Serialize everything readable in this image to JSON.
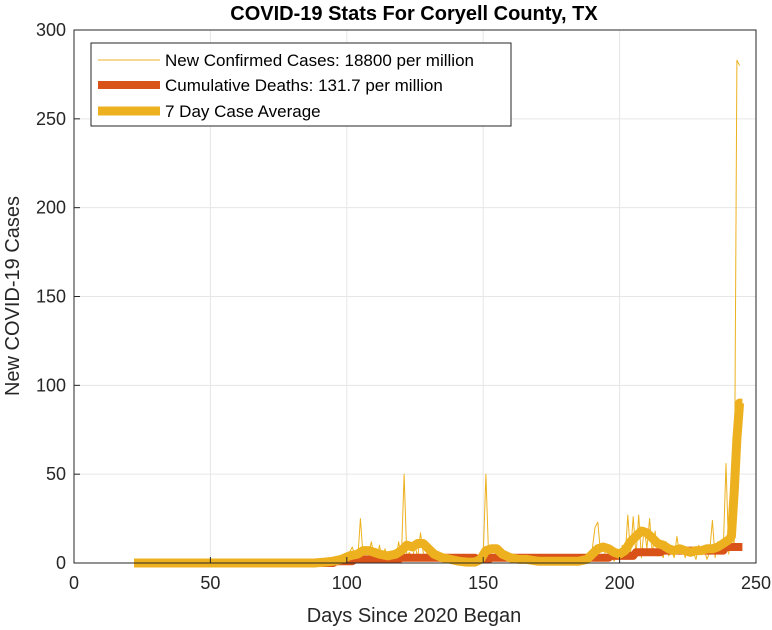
{
  "chart_data": {
    "type": "line",
    "title": "COVID-19 Stats For Coryell County, TX",
    "xlabel": "Days Since 2020 Began",
    "ylabel": "New COVID-19 Cases",
    "xlim": [
      0,
      250
    ],
    "ylim": [
      0,
      300
    ],
    "xticks": [
      0,
      50,
      100,
      150,
      200,
      250
    ],
    "yticks": [
      0,
      50,
      100,
      150,
      200,
      250,
      300
    ],
    "grid": true,
    "legend_position": "top-left",
    "series": [
      {
        "name": "New Confirmed Cases: 18800 per million",
        "color": "#EDB120",
        "style": "thin",
        "points": [
          [
            22,
            0
          ],
          [
            60,
            0
          ],
          [
            90,
            0
          ],
          [
            95,
            1
          ],
          [
            98,
            2
          ],
          [
            100,
            3
          ],
          [
            101,
            6
          ],
          [
            102,
            9
          ],
          [
            103,
            4
          ],
          [
            104,
            2
          ],
          [
            105,
            25
          ],
          [
            106,
            3
          ],
          [
            107,
            8
          ],
          [
            108,
            5
          ],
          [
            109,
            12
          ],
          [
            110,
            3
          ],
          [
            111,
            2
          ],
          [
            112,
            10
          ],
          [
            113,
            1
          ],
          [
            114,
            8
          ],
          [
            115,
            2
          ],
          [
            116,
            3
          ],
          [
            117,
            6
          ],
          [
            118,
            1
          ],
          [
            119,
            12
          ],
          [
            120,
            3
          ],
          [
            121,
            50
          ],
          [
            122,
            4
          ],
          [
            123,
            6
          ],
          [
            124,
            2
          ],
          [
            125,
            10
          ],
          [
            126,
            3
          ],
          [
            127,
            17
          ],
          [
            128,
            6
          ],
          [
            129,
            3
          ],
          [
            130,
            9
          ],
          [
            131,
            2
          ],
          [
            132,
            4
          ],
          [
            133,
            1
          ],
          [
            134,
            3
          ],
          [
            135,
            2
          ],
          [
            136,
            1
          ],
          [
            137,
            2
          ],
          [
            138,
            1
          ],
          [
            139,
            0
          ],
          [
            140,
            1
          ],
          [
            141,
            0
          ],
          [
            142,
            2
          ],
          [
            143,
            0
          ],
          [
            144,
            1
          ],
          [
            145,
            0
          ],
          [
            146,
            1
          ],
          [
            147,
            2
          ],
          [
            148,
            1
          ],
          [
            149,
            3
          ],
          [
            150,
            4
          ],
          [
            151,
            50
          ],
          [
            152,
            2
          ],
          [
            153,
            10
          ],
          [
            154,
            8
          ],
          [
            155,
            3
          ],
          [
            156,
            5
          ],
          [
            157,
            2
          ],
          [
            158,
            1
          ],
          [
            159,
            3
          ],
          [
            160,
            0
          ],
          [
            161,
            1
          ],
          [
            162,
            3
          ],
          [
            163,
            0
          ],
          [
            164,
            1
          ],
          [
            165,
            3
          ],
          [
            166,
            0
          ],
          [
            167,
            2
          ],
          [
            168,
            0
          ],
          [
            169,
            1
          ],
          [
            170,
            3
          ],
          [
            171,
            0
          ],
          [
            172,
            2
          ],
          [
            173,
            0
          ],
          [
            174,
            1
          ],
          [
            175,
            2
          ],
          [
            176,
            0
          ],
          [
            177,
            1
          ],
          [
            178,
            2
          ],
          [
            179,
            0
          ],
          [
            180,
            1
          ],
          [
            181,
            0
          ],
          [
            182,
            2
          ],
          [
            183,
            0
          ],
          [
            184,
            1
          ],
          [
            185,
            3
          ],
          [
            186,
            0
          ],
          [
            187,
            1
          ],
          [
            188,
            3
          ],
          [
            189,
            5
          ],
          [
            190,
            8
          ],
          [
            191,
            20
          ],
          [
            192,
            23
          ],
          [
            193,
            6
          ],
          [
            194,
            10
          ],
          [
            195,
            3
          ],
          [
            196,
            2
          ],
          [
            197,
            5
          ],
          [
            198,
            1
          ],
          [
            199,
            4
          ],
          [
            200,
            2
          ],
          [
            201,
            10
          ],
          [
            202,
            3
          ],
          [
            203,
            27
          ],
          [
            204,
            5
          ],
          [
            205,
            26
          ],
          [
            206,
            4
          ],
          [
            207,
            27
          ],
          [
            208,
            3
          ],
          [
            209,
            20
          ],
          [
            210,
            8
          ],
          [
            211,
            25
          ],
          [
            212,
            5
          ],
          [
            213,
            18
          ],
          [
            214,
            4
          ],
          [
            215,
            6
          ],
          [
            216,
            3
          ],
          [
            217,
            12
          ],
          [
            218,
            4
          ],
          [
            219,
            7
          ],
          [
            220,
            3
          ],
          [
            221,
            15
          ],
          [
            222,
            5
          ],
          [
            223,
            10
          ],
          [
            224,
            3
          ],
          [
            225,
            8
          ],
          [
            226,
            4
          ],
          [
            227,
            6
          ],
          [
            228,
            2
          ],
          [
            229,
            10
          ],
          [
            230,
            5
          ],
          [
            231,
            8
          ],
          [
            232,
            2
          ],
          [
            233,
            6
          ],
          [
            234,
            24
          ],
          [
            235,
            3
          ],
          [
            236,
            12
          ],
          [
            237,
            5
          ],
          [
            238,
            8
          ],
          [
            239,
            56
          ],
          [
            240,
            5
          ],
          [
            241,
            20
          ],
          [
            242,
            10
          ],
          [
            243,
            283
          ],
          [
            244,
            280
          ]
        ]
      },
      {
        "name": "Cumulative Deaths: 131.7 per million",
        "color": "#D95319",
        "style": "thick",
        "points": [
          [
            22,
            0
          ],
          [
            95,
            0
          ],
          [
            96,
            1
          ],
          [
            102,
            1
          ],
          [
            103,
            2
          ],
          [
            119,
            2
          ],
          [
            120,
            3
          ],
          [
            147,
            3
          ],
          [
            148,
            2
          ],
          [
            152,
            2
          ],
          [
            153,
            3
          ],
          [
            196,
            3
          ],
          [
            197,
            4
          ],
          [
            205,
            4
          ],
          [
            206,
            6
          ],
          [
            215,
            6
          ],
          [
            216,
            7
          ],
          [
            238,
            7
          ],
          [
            239,
            9
          ],
          [
            245,
            9
          ]
        ]
      },
      {
        "name": "7 Day Case Average",
        "color": "#EDB120",
        "style": "thicker",
        "points": [
          [
            22,
            0
          ],
          [
            60,
            0
          ],
          [
            88,
            0
          ],
          [
            92,
            0.5
          ],
          [
            95,
            1
          ],
          [
            98,
            2
          ],
          [
            101,
            4
          ],
          [
            104,
            5
          ],
          [
            106,
            7
          ],
          [
            108,
            7
          ],
          [
            110,
            6
          ],
          [
            112,
            5
          ],
          [
            115,
            4
          ],
          [
            118,
            5
          ],
          [
            120,
            7
          ],
          [
            122,
            10
          ],
          [
            124,
            9
          ],
          [
            126,
            11
          ],
          [
            128,
            11
          ],
          [
            130,
            8
          ],
          [
            132,
            5
          ],
          [
            135,
            3
          ],
          [
            138,
            2
          ],
          [
            141,
            1
          ],
          [
            144,
            0.5
          ],
          [
            147,
            0.5
          ],
          [
            149,
            2
          ],
          [
            151,
            7
          ],
          [
            153,
            8
          ],
          [
            155,
            8
          ],
          [
            157,
            5
          ],
          [
            160,
            3
          ],
          [
            163,
            2
          ],
          [
            166,
            2
          ],
          [
            170,
            1
          ],
          [
            174,
            1
          ],
          [
            178,
            1
          ],
          [
            182,
            1
          ],
          [
            185,
            1
          ],
          [
            188,
            2
          ],
          [
            190,
            5
          ],
          [
            192,
            8
          ],
          [
            194,
            9
          ],
          [
            196,
            8
          ],
          [
            198,
            6
          ],
          [
            200,
            5
          ],
          [
            202,
            7
          ],
          [
            204,
            12
          ],
          [
            206,
            15
          ],
          [
            208,
            18
          ],
          [
            210,
            17
          ],
          [
            212,
            14
          ],
          [
            214,
            11
          ],
          [
            216,
            10
          ],
          [
            218,
            8
          ],
          [
            220,
            7
          ],
          [
            222,
            8
          ],
          [
            224,
            7
          ],
          [
            226,
            6
          ],
          [
            228,
            7
          ],
          [
            230,
            7
          ],
          [
            232,
            8
          ],
          [
            234,
            8
          ],
          [
            236,
            9
          ],
          [
            238,
            11
          ],
          [
            240,
            13
          ],
          [
            241,
            15
          ],
          [
            242,
            40
          ],
          [
            243,
            70
          ],
          [
            244,
            90
          ],
          [
            245,
            90
          ]
        ]
      }
    ]
  }
}
